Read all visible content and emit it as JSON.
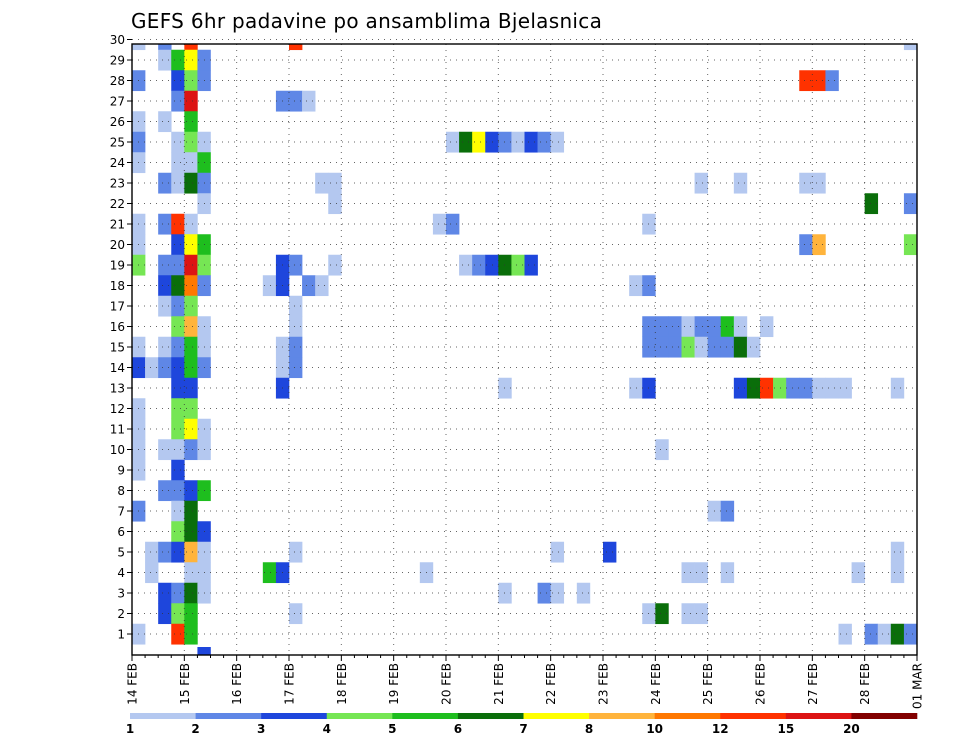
{
  "chart_data": {
    "type": "heatmap",
    "title": "GEFS 6hr padavine po ansamblima Bjelasnica",
    "xlabel": "",
    "ylabel": "",
    "x_tick_labels": [
      "14 FEB",
      "15 FEB",
      "16 FEB",
      "17 FEB",
      "18 FEB",
      "19 FEB",
      "20 FEB",
      "21 FEB",
      "22 FEB",
      "23 FEB",
      "24 FEB",
      "25 FEB",
      "26 FEB",
      "27 FEB",
      "28 FEB",
      "01 MAR"
    ],
    "xlim": [
      0,
      60
    ],
    "x_unit": "6-hour steps since 14 FEB 00Z",
    "y_members": [
      1,
      30
    ],
    "y_tick_labels": [
      "1",
      "2",
      "3",
      "4",
      "5",
      "6",
      "7",
      "8",
      "9",
      "10",
      "11",
      "12",
      "13",
      "14",
      "15",
      "16",
      "17",
      "18",
      "19",
      "20",
      "21",
      "22",
      "23",
      "24",
      "25",
      "26",
      "27",
      "28",
      "29",
      "30"
    ],
    "grid": true,
    "colorbar": {
      "labels": [
        "1",
        "2",
        "3",
        "4",
        "5",
        "6",
        "7",
        "8",
        "10",
        "12",
        "15",
        "20"
      ],
      "levels": [
        1,
        2,
        3,
        4,
        5,
        6,
        7,
        8,
        10,
        12,
        15,
        20
      ],
      "colors": [
        "#b4c8f0",
        "#5f87e6",
        "#1e46dc",
        "#76e654",
        "#1ebe1e",
        "#0a6e0a",
        "#ffff00",
        "#ffb43c",
        "#ff7800",
        "#ff3200",
        "#dc1414",
        "#820000"
      ]
    },
    "cells": [
      {
        "m": 30,
        "c": [
          [
            0,
            0
          ],
          [
            2,
            1
          ],
          [
            4,
            9
          ],
          [
            12,
            9
          ],
          [
            59,
            0
          ]
        ]
      },
      {
        "m": 29,
        "c": [
          [
            2,
            0
          ],
          [
            3,
            4
          ],
          [
            4,
            6
          ],
          [
            5,
            1
          ]
        ]
      },
      {
        "m": 28,
        "c": [
          [
            0,
            1
          ],
          [
            3,
            2
          ],
          [
            4,
            3
          ],
          [
            5,
            1
          ],
          [
            51,
            9
          ],
          [
            52,
            9
          ],
          [
            53,
            1
          ]
        ]
      },
      {
        "m": 27,
        "c": [
          [
            3,
            1
          ],
          [
            4,
            10
          ],
          [
            11,
            1
          ],
          [
            12,
            1
          ],
          [
            13,
            0
          ]
        ]
      },
      {
        "m": 26,
        "c": [
          [
            0,
            0
          ],
          [
            2,
            0
          ],
          [
            4,
            4
          ]
        ]
      },
      {
        "m": 25,
        "c": [
          [
            0,
            1
          ],
          [
            3,
            0
          ],
          [
            4,
            3
          ],
          [
            5,
            0
          ],
          [
            24,
            0
          ],
          [
            25,
            5
          ],
          [
            26,
            6
          ],
          [
            27,
            2
          ],
          [
            28,
            1
          ],
          [
            29,
            0
          ],
          [
            30,
            2
          ],
          [
            31,
            1
          ],
          [
            32,
            0
          ]
        ]
      },
      {
        "m": 24,
        "c": [
          [
            0,
            0
          ],
          [
            3,
            0
          ],
          [
            4,
            0
          ],
          [
            5,
            4
          ]
        ]
      },
      {
        "m": 23,
        "c": [
          [
            2,
            1
          ],
          [
            3,
            0
          ],
          [
            4,
            5
          ],
          [
            5,
            1
          ],
          [
            14,
            0
          ],
          [
            15,
            0
          ],
          [
            43,
            0
          ],
          [
            46,
            0
          ],
          [
            51,
            0
          ],
          [
            52,
            0
          ]
        ]
      },
      {
        "m": 22,
        "c": [
          [
            5,
            0
          ],
          [
            15,
            0
          ],
          [
            56,
            5
          ],
          [
            59,
            1
          ]
        ]
      },
      {
        "m": 21,
        "c": [
          [
            0,
            0
          ],
          [
            2,
            1
          ],
          [
            3,
            9
          ],
          [
            4,
            0
          ],
          [
            23,
            0
          ],
          [
            24,
            1
          ],
          [
            39,
            0
          ]
        ]
      },
      {
        "m": 20,
        "c": [
          [
            0,
            0
          ],
          [
            3,
            2
          ],
          [
            4,
            6
          ],
          [
            5,
            4
          ],
          [
            51,
            1
          ],
          [
            52,
            7
          ],
          [
            59,
            3
          ]
        ]
      },
      {
        "m": 19,
        "c": [
          [
            0,
            3
          ],
          [
            2,
            1
          ],
          [
            3,
            1
          ],
          [
            4,
            10
          ],
          [
            5,
            3
          ],
          [
            11,
            2
          ],
          [
            12,
            1
          ],
          [
            15,
            0
          ],
          [
            25,
            0
          ],
          [
            26,
            1
          ],
          [
            27,
            2
          ],
          [
            28,
            5
          ],
          [
            29,
            3
          ],
          [
            30,
            2
          ]
        ]
      },
      {
        "m": 18,
        "c": [
          [
            2,
            2
          ],
          [
            3,
            5
          ],
          [
            4,
            8
          ],
          [
            5,
            1
          ],
          [
            10,
            0
          ],
          [
            11,
            2
          ],
          [
            13,
            1
          ],
          [
            14,
            0
          ],
          [
            38,
            0
          ],
          [
            39,
            1
          ]
        ]
      },
      {
        "m": 17,
        "c": [
          [
            2,
            0
          ],
          [
            3,
            1
          ],
          [
            4,
            3
          ],
          [
            12,
            0
          ]
        ]
      },
      {
        "m": 16,
        "c": [
          [
            3,
            3
          ],
          [
            4,
            7
          ],
          [
            5,
            0
          ],
          [
            12,
            0
          ],
          [
            39,
            1
          ],
          [
            40,
            1
          ],
          [
            41,
            1
          ],
          [
            42,
            0
          ],
          [
            43,
            1
          ],
          [
            44,
            1
          ],
          [
            45,
            4
          ],
          [
            46,
            0
          ],
          [
            48,
            0
          ]
        ]
      },
      {
        "m": 15,
        "c": [
          [
            0,
            0
          ],
          [
            2,
            0
          ],
          [
            3,
            1
          ],
          [
            4,
            4
          ],
          [
            5,
            0
          ],
          [
            11,
            0
          ],
          [
            12,
            1
          ],
          [
            39,
            1
          ],
          [
            40,
            1
          ],
          [
            41,
            1
          ],
          [
            42,
            3
          ],
          [
            43,
            0
          ],
          [
            44,
            1
          ],
          [
            45,
            1
          ],
          [
            46,
            5
          ],
          [
            47,
            0
          ]
        ]
      },
      {
        "m": 14,
        "c": [
          [
            0,
            2
          ],
          [
            1,
            0
          ],
          [
            2,
            1
          ],
          [
            3,
            2
          ],
          [
            4,
            4
          ],
          [
            5,
            1
          ],
          [
            11,
            0
          ],
          [
            12,
            1
          ]
        ]
      },
      {
        "m": 13,
        "c": [
          [
            3,
            2
          ],
          [
            4,
            2
          ],
          [
            11,
            2
          ],
          [
            28,
            0
          ],
          [
            38,
            0
          ],
          [
            39,
            2
          ],
          [
            46,
            2
          ],
          [
            47,
            5
          ],
          [
            48,
            9
          ],
          [
            49,
            3
          ],
          [
            50,
            1
          ],
          [
            51,
            1
          ],
          [
            52,
            0
          ],
          [
            53,
            0
          ],
          [
            54,
            0
          ],
          [
            58,
            0
          ]
        ]
      },
      {
        "m": 12,
        "c": [
          [
            0,
            0
          ],
          [
            3,
            3
          ],
          [
            4,
            3
          ]
        ]
      },
      {
        "m": 11,
        "c": [
          [
            0,
            0
          ],
          [
            3,
            3
          ],
          [
            4,
            6
          ],
          [
            5,
            0
          ]
        ]
      },
      {
        "m": 10,
        "c": [
          [
            0,
            0
          ],
          [
            2,
            0
          ],
          [
            3,
            0
          ],
          [
            4,
            1
          ],
          [
            5,
            0
          ],
          [
            40,
            0
          ]
        ]
      },
      {
        "m": 9,
        "c": [
          [
            0,
            0
          ],
          [
            3,
            2
          ]
        ]
      },
      {
        "m": 8,
        "c": [
          [
            2,
            1
          ],
          [
            3,
            1
          ],
          [
            4,
            2
          ],
          [
            5,
            4
          ]
        ]
      },
      {
        "m": 7,
        "c": [
          [
            0,
            1
          ],
          [
            3,
            0
          ],
          [
            4,
            5
          ],
          [
            44,
            0
          ],
          [
            45,
            1
          ]
        ]
      },
      {
        "m": 6,
        "c": [
          [
            3,
            3
          ],
          [
            4,
            5
          ],
          [
            5,
            2
          ]
        ]
      },
      {
        "m": 5,
        "c": [
          [
            1,
            0
          ],
          [
            2,
            1
          ],
          [
            3,
            2
          ],
          [
            4,
            7
          ],
          [
            5,
            0
          ],
          [
            12,
            0
          ],
          [
            32,
            0
          ],
          [
            36,
            2
          ],
          [
            58,
            0
          ]
        ]
      },
      {
        "m": 4,
        "c": [
          [
            1,
            0
          ],
          [
            4,
            0
          ],
          [
            5,
            0
          ],
          [
            10,
            4
          ],
          [
            11,
            2
          ],
          [
            22,
            0
          ],
          [
            42,
            0
          ],
          [
            43,
            0
          ],
          [
            45,
            0
          ],
          [
            55,
            0
          ],
          [
            58,
            0
          ]
        ]
      },
      {
        "m": 3,
        "c": [
          [
            2,
            2
          ],
          [
            3,
            1
          ],
          [
            4,
            5
          ],
          [
            5,
            0
          ],
          [
            28,
            0
          ],
          [
            31,
            1
          ],
          [
            32,
            0
          ],
          [
            34,
            0
          ]
        ]
      },
      {
        "m": 2,
        "c": [
          [
            2,
            2
          ],
          [
            3,
            3
          ],
          [
            4,
            4
          ],
          [
            12,
            0
          ],
          [
            39,
            0
          ],
          [
            40,
            5
          ],
          [
            42,
            0
          ],
          [
            43,
            0
          ]
        ]
      },
      {
        "m": 1,
        "c": [
          [
            0,
            0
          ],
          [
            3,
            9
          ],
          [
            4,
            4
          ],
          [
            54,
            0
          ],
          [
            56,
            1
          ],
          [
            57,
            0
          ],
          [
            58,
            5
          ],
          [
            59,
            1
          ]
        ]
      },
      {
        "m": 0,
        "c": [
          [
            5,
            2
          ]
        ]
      }
    ]
  }
}
